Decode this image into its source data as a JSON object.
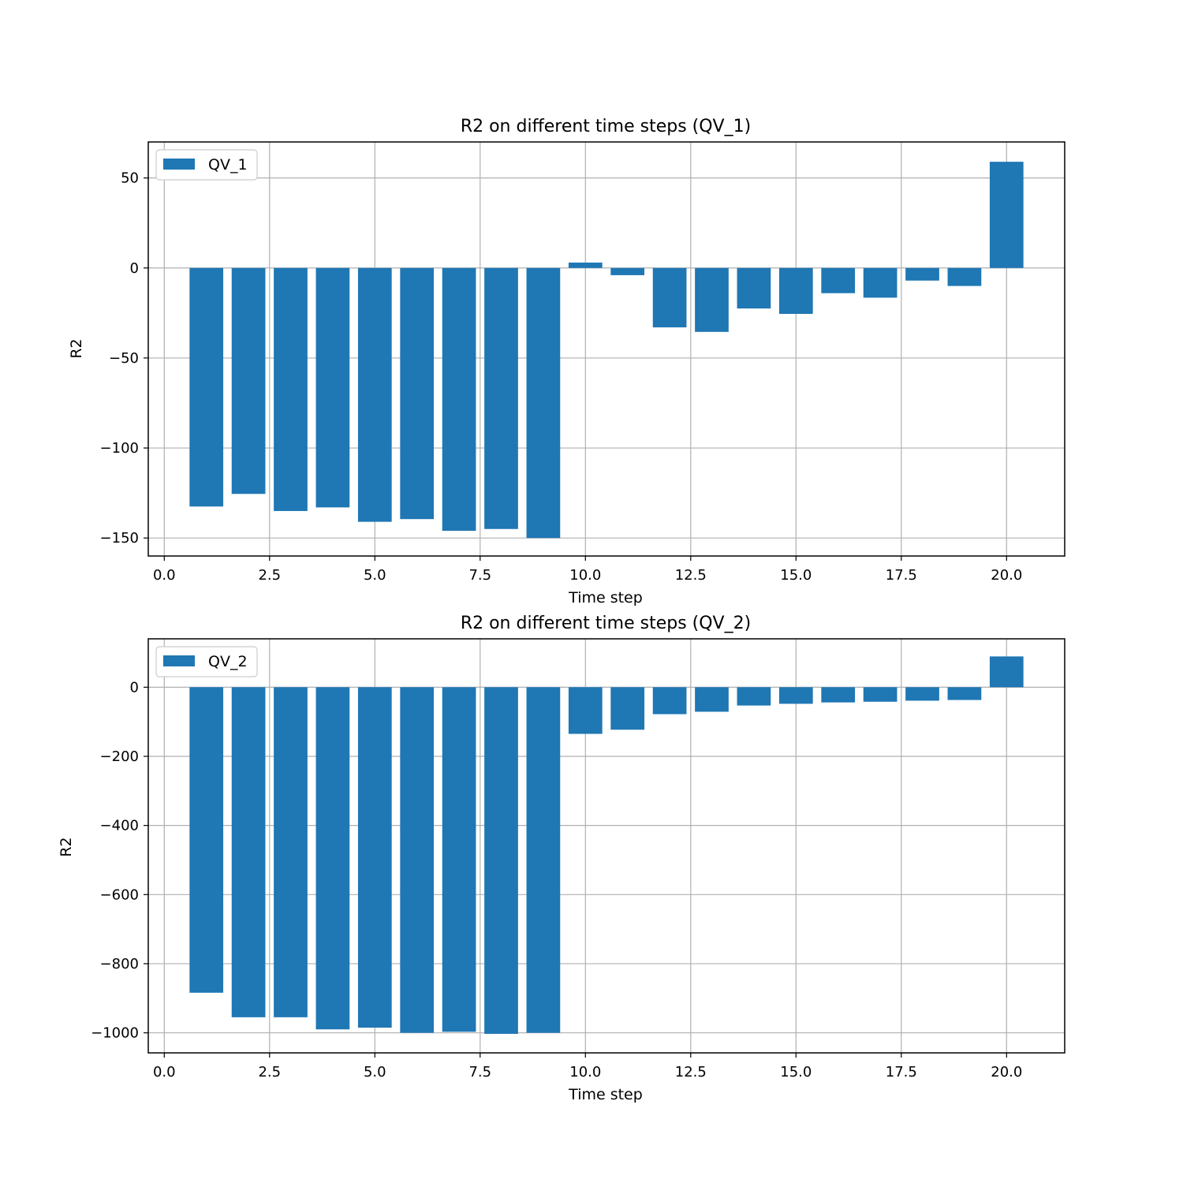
{
  "colors": {
    "bar": "#1f77b4",
    "grid": "#b0b0b0",
    "frame": "#000000",
    "legend_border": "#cccccc"
  },
  "chart_data": [
    {
      "type": "bar",
      "title": "R2 on different time steps (QV_1)",
      "xlabel": "Time step",
      "ylabel": "R2",
      "grid": true,
      "legend_position": "top-left",
      "xlim": [
        -0.38,
        21.38
      ],
      "ylim": [
        -160,
        70
      ],
      "xticks": [
        0.0,
        2.5,
        5.0,
        7.5,
        10.0,
        12.5,
        15.0,
        17.5,
        20.0
      ],
      "xtick_labels": [
        "0.0",
        "2.5",
        "5.0",
        "7.5",
        "10.0",
        "12.5",
        "15.0",
        "17.5",
        "20.0"
      ],
      "yticks": [
        50,
        0,
        -50,
        -100,
        -150
      ],
      "ytick_labels": [
        "50",
        "0",
        "−50",
        "−100",
        "−150"
      ],
      "bar_width": 0.8,
      "series": [
        {
          "name": "QV_1",
          "x": [
            1,
            2,
            3,
            4,
            5,
            6,
            7,
            8,
            9,
            10,
            11,
            12,
            13,
            14,
            15,
            16,
            17,
            18,
            19,
            20
          ],
          "values": [
            -132.5,
            -125.5,
            -135,
            -133,
            -141,
            -139.5,
            -146,
            -145,
            -150,
            3,
            -4,
            -33,
            -35.5,
            -22.5,
            -25.5,
            -14,
            -16.5,
            -7,
            -10,
            59
          ]
        }
      ]
    },
    {
      "type": "bar",
      "title": "R2 on different time steps (QV_2)",
      "xlabel": "Time step",
      "ylabel": "R2",
      "grid": true,
      "legend_position": "top-left",
      "xlim": [
        -0.38,
        21.38
      ],
      "ylim": [
        -1058,
        140
      ],
      "xticks": [
        0.0,
        2.5,
        5.0,
        7.5,
        10.0,
        12.5,
        15.0,
        17.5,
        20.0
      ],
      "xtick_labels": [
        "0.0",
        "2.5",
        "5.0",
        "7.5",
        "10.0",
        "12.5",
        "15.0",
        "17.5",
        "20.0"
      ],
      "yticks": [
        0,
        -200,
        -400,
        -600,
        -800,
        -1000
      ],
      "ytick_labels": [
        "0",
        "−200",
        "−400",
        "−600",
        "−800",
        "−1000"
      ],
      "bar_width": 0.8,
      "series": [
        {
          "name": "QV_2",
          "x": [
            1,
            2,
            3,
            4,
            5,
            6,
            7,
            8,
            9,
            10,
            11,
            12,
            13,
            14,
            15,
            16,
            17,
            18,
            19,
            20
          ],
          "values": [
            -884,
            -955,
            -955,
            -990,
            -985,
            -1000,
            -997,
            -1003,
            -1000,
            -135,
            -123,
            -78,
            -71,
            -53,
            -48,
            -44,
            -42,
            -39,
            -37,
            89
          ]
        }
      ]
    }
  ]
}
